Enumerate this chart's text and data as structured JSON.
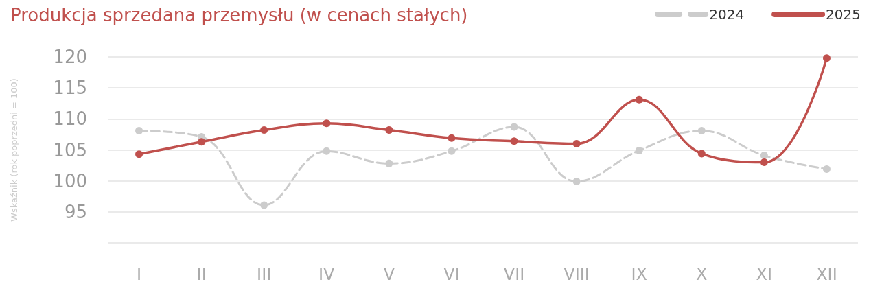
{
  "chart_data": {
    "type": "line",
    "title": "Produkcja sprzedana przemysłu (w cenach stałych)",
    "ylabel": "Wskaźnik (rok poprzedni = 100)",
    "categories": [
      "I",
      "II",
      "III",
      "IV",
      "V",
      "VI",
      "VII",
      "VIII",
      "IX",
      "X",
      "XI",
      "XII"
    ],
    "series": [
      {
        "name": "2024",
        "color": "#cccccc",
        "line_style": "dashed",
        "values": [
          108.1,
          107.1,
          96.1,
          104.8,
          102.8,
          104.8,
          108.7,
          99.9,
          104.9,
          108.1,
          104.1,
          101.9
        ]
      },
      {
        "name": "2025",
        "color": "#c0504d",
        "line_style": "solid",
        "values": [
          104.3,
          106.3,
          108.2,
          109.3,
          108.2,
          106.9,
          106.4,
          106.0,
          113.1,
          104.4,
          103.0,
          119.8
        ]
      }
    ],
    "ylim": [
      90,
      120
    ],
    "yticks": [
      {
        "value": 90,
        "label": null
      },
      95,
      100,
      105,
      110,
      115,
      120
    ],
    "grid": "y",
    "legend": "top right",
    "marker": "circle"
  }
}
